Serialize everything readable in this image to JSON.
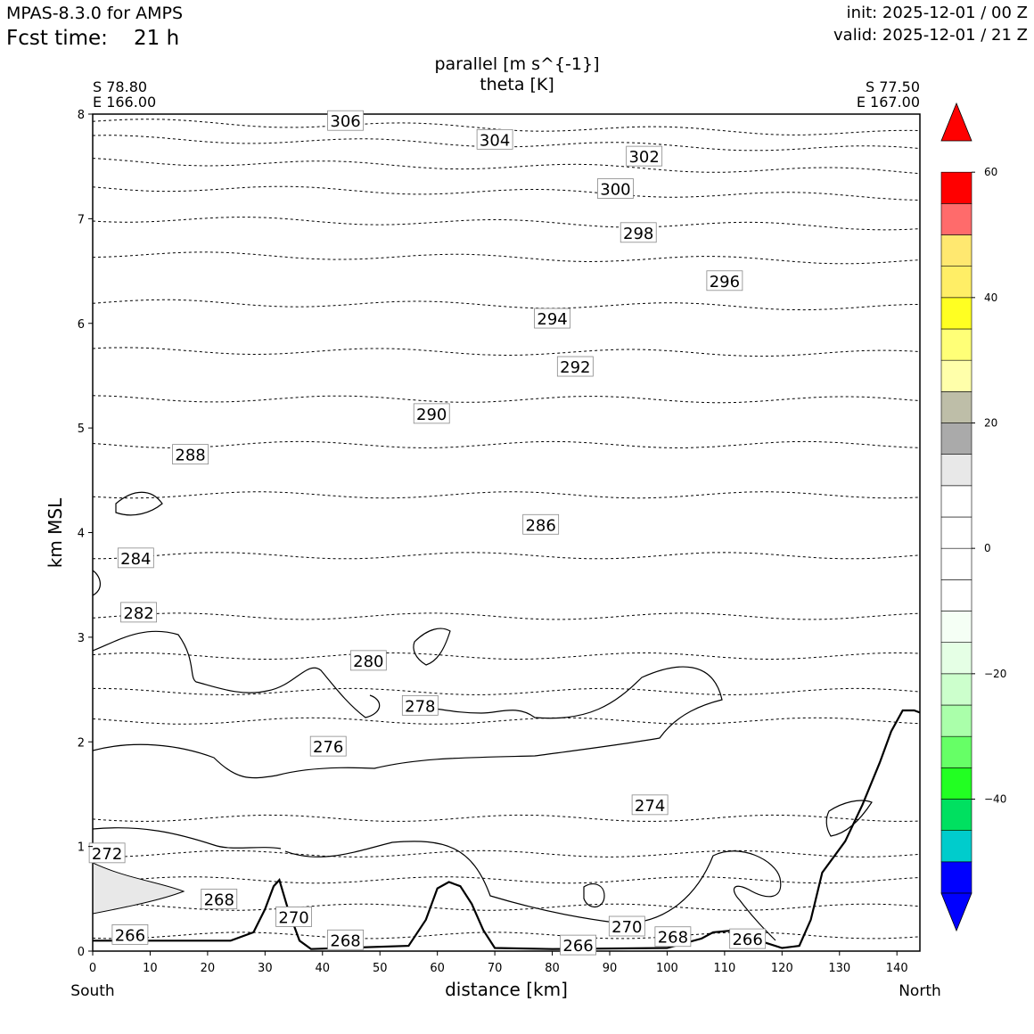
{
  "header": {
    "model": "MPAS-8.3.0 for AMPS",
    "fcst_label": "Fcst time:",
    "fcst_value": "21 h",
    "init": "init: 2025-12-01 / 00 Z",
    "valid": "valid: 2025-12-01 / 21 Z"
  },
  "chart_data": {
    "type": "contour",
    "title_line1": "parallel [m s^{-1}]",
    "title_line2": "theta [K]",
    "xlabel": "distance [km]",
    "ylabel": "km MSL",
    "xlim": [
      0,
      144
    ],
    "ylim": [
      0,
      8
    ],
    "x_ticks": [
      0,
      10,
      20,
      30,
      40,
      50,
      60,
      70,
      80,
      90,
      100,
      110,
      120,
      130,
      140
    ],
    "y_ticks": [
      0,
      1,
      2,
      3,
      4,
      5,
      6,
      7,
      8
    ],
    "start_point": {
      "lat": "S 78.80",
      "lon": "E 166.00",
      "side": "South"
    },
    "end_point": {
      "lat": "S 77.50",
      "lon": "E 167.00",
      "side": "North"
    },
    "theta_contours": [
      {
        "value": 306,
        "label": "306",
        "label_x": 44,
        "label_y": 7.93,
        "y0": 7.93
      },
      {
        "value": 304,
        "label": "304",
        "label_x": 70,
        "label_y": 7.75,
        "y0": 7.77
      },
      {
        "value": 302,
        "label": "302",
        "label_x": 96,
        "label_y": 7.59,
        "y0": 7.55
      },
      {
        "value": 300,
        "label": "300",
        "label_x": 91,
        "label_y": 7.28,
        "y0": 7.3
      },
      {
        "value": 298,
        "label": "298",
        "label_x": 95,
        "label_y": 6.86,
        "y0": 7.0
      },
      {
        "value": 296,
        "label": "296",
        "label_x": 110,
        "label_y": 6.4,
        "y0": 6.66
      },
      {
        "value": 294,
        "label": "294",
        "label_x": 80,
        "label_y": 6.04,
        "y0": 6.2
      },
      {
        "value": 292,
        "label": "292",
        "label_x": 84,
        "label_y": 5.58,
        "y0": 5.74
      },
      {
        "value": 290,
        "label": "290",
        "label_x": 59,
        "label_y": 5.13,
        "y0": 5.28
      },
      {
        "value": 288,
        "label": "288",
        "label_x": 17,
        "label_y": 4.74,
        "y0": 4.84
      },
      {
        "value": 286,
        "label": "286",
        "label_x": 78,
        "label_y": 4.07,
        "y0": 4.36
      },
      {
        "value": 284,
        "label": "284",
        "label_x": 7.5,
        "label_y": 3.75,
        "y0": 3.78
      },
      {
        "value": 282,
        "label": "282",
        "label_x": 8,
        "label_y": 3.23,
        "y0": 3.2
      },
      {
        "value": 280,
        "label": "280",
        "label_x": 48,
        "label_y": 2.77,
        "y0": 2.82
      },
      {
        "value": 278,
        "label": "278",
        "label_x": 57,
        "label_y": 2.34,
        "y0": 2.48
      },
      {
        "value": 276,
        "label": "276",
        "label_x": 41,
        "label_y": 1.95,
        "y0": 2.2
      },
      {
        "value": 274,
        "label": "274",
        "label_x": 97,
        "label_y": 1.39,
        "y0": 1.27
      },
      {
        "value": 272,
        "label": "272",
        "label_x": 2.5,
        "label_y": 0.93,
        "y0": 0.93
      },
      {
        "value": 270,
        "label": "270",
        "label_x": 35,
        "label_y": 0.32,
        "y0": 0.68
      },
      {
        "value": 270,
        "label": "270",
        "label_x": 93,
        "label_y": 0.23,
        "y0": 0.25
      },
      {
        "value": 268,
        "label": "268",
        "label_x": 22,
        "label_y": 0.49,
        "y0": 0.42
      },
      {
        "value": 268,
        "label": "268",
        "label_x": 44,
        "label_y": 0.1,
        "y0": 0.1
      },
      {
        "value": 268,
        "label": "268",
        "label_x": 101,
        "label_y": 0.13,
        "y0": 0.13
      },
      {
        "value": 266,
        "label": "266",
        "label_x": 6.5,
        "label_y": 0.15,
        "y0": 0.15
      },
      {
        "value": 266,
        "label": "266",
        "label_x": 84.5,
        "label_y": 0.05,
        "y0": 0.05
      },
      {
        "value": 266,
        "label": "266",
        "label_x": 114,
        "label_y": 0.11,
        "y0": 0.11
      }
    ],
    "terrain": [
      [
        0,
        0.1
      ],
      [
        10,
        0.1
      ],
      [
        24,
        0.1
      ],
      [
        28,
        0.18
      ],
      [
        30,
        0.4
      ],
      [
        31.5,
        0.62
      ],
      [
        32.5,
        0.68
      ],
      [
        34,
        0.4
      ],
      [
        36,
        0.1
      ],
      [
        38,
        0.02
      ],
      [
        55,
        0.05
      ],
      [
        58,
        0.3
      ],
      [
        60,
        0.6
      ],
      [
        62,
        0.66
      ],
      [
        64,
        0.62
      ],
      [
        66,
        0.45
      ],
      [
        68,
        0.2
      ],
      [
        70,
        0.03
      ],
      [
        80,
        0.02
      ],
      [
        100,
        0.03
      ],
      [
        106,
        0.12
      ],
      [
        108,
        0.18
      ],
      [
        112,
        0.2
      ],
      [
        116,
        0.1
      ],
      [
        120,
        0.03
      ],
      [
        123,
        0.05
      ],
      [
        125,
        0.3
      ],
      [
        127,
        0.75
      ],
      [
        131,
        1.05
      ],
      [
        134,
        1.4
      ],
      [
        137,
        1.8
      ],
      [
        139,
        2.1
      ],
      [
        141,
        2.3
      ],
      [
        143,
        2.3
      ],
      [
        144,
        2.28
      ]
    ],
    "colorbar": {
      "ticks": [
        60,
        40,
        20,
        0,
        -20,
        -40
      ],
      "tick_labels": [
        "60",
        "40",
        "20",
        "0",
        "−20",
        "−40"
      ],
      "vmin": -55,
      "vmax": 65,
      "levels": [
        {
          "from": -55,
          "to": -50,
          "color": "#0000ff"
        },
        {
          "from": -50,
          "to": -45,
          "color": "#00cccc"
        },
        {
          "from": -45,
          "to": -40,
          "color": "#00e060"
        },
        {
          "from": -40,
          "to": -35,
          "color": "#22ff22"
        },
        {
          "from": -35,
          "to": -30,
          "color": "#66ff66"
        },
        {
          "from": -30,
          "to": -25,
          "color": "#aaffaa"
        },
        {
          "from": -25,
          "to": -20,
          "color": "#ccffcc"
        },
        {
          "from": -20,
          "to": -15,
          "color": "#e5ffe5"
        },
        {
          "from": -15,
          "to": -10,
          "color": "#f5fff5"
        },
        {
          "from": -10,
          "to": -5,
          "color": "#ffffff"
        },
        {
          "from": -5,
          "to": 0,
          "color": "#ffffff"
        },
        {
          "from": 0,
          "to": 5,
          "color": "#ffffff"
        },
        {
          "from": 5,
          "to": 10,
          "color": "#ffffff"
        },
        {
          "from": 10,
          "to": 15,
          "color": "#e8e8e8"
        },
        {
          "from": 15,
          "to": 20,
          "color": "#aaaaaa"
        },
        {
          "from": 20,
          "to": 25,
          "color": "#bebea8"
        },
        {
          "from": 25,
          "to": 30,
          "color": "#ffffaa"
        },
        {
          "from": 30,
          "to": 35,
          "color": "#ffff77"
        },
        {
          "from": 35,
          "to": 40,
          "color": "#ffff22"
        },
        {
          "from": 40,
          "to": 45,
          "color": "#ffee66"
        },
        {
          "from": 45,
          "to": 50,
          "color": "#ffe870"
        },
        {
          "from": 50,
          "to": 55,
          "color": "#ff6b6b"
        },
        {
          "from": 55,
          "to": 60,
          "color": "#ff0000"
        }
      ],
      "extend_min_color": "#0000ff",
      "extend_max_color": "#ff0000"
    }
  }
}
